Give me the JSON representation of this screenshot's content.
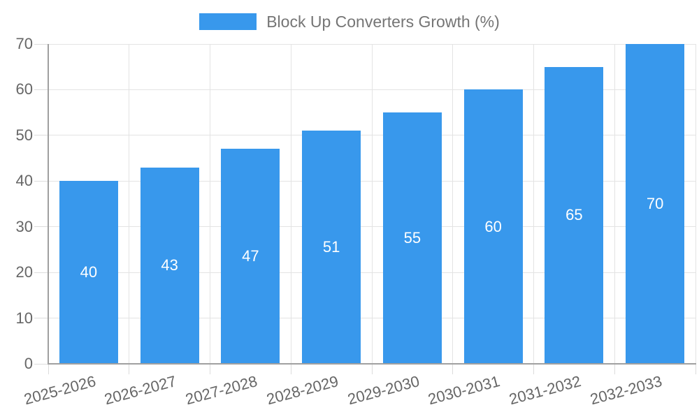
{
  "chart_data": {
    "type": "bar",
    "title": "Block Up Converters Growth (%)",
    "categories": [
      "2025-2026",
      "2026-2027",
      "2027-2028",
      "2028-2029",
      "2029-2030",
      "2030-2031",
      "2031-2032",
      "2032-2033"
    ],
    "series": [
      {
        "name": "Block Up Converters Growth (%)",
        "values": [
          40,
          43,
          47,
          51,
          55,
          60,
          65,
          70
        ]
      }
    ],
    "xlabel": "",
    "ylabel": "",
    "ylim": [
      0,
      70
    ],
    "y_ticks": [
      0,
      10,
      20,
      30,
      40,
      50,
      60,
      70
    ],
    "grid": true,
    "legend_position": "top-center",
    "bar_label_position": "inside-center",
    "x_label_rotation_deg": -15,
    "colors": {
      "bar": "#3898ec",
      "bar_label": "#ffffff",
      "axis_line": "#a0a0a0",
      "grid_line": "#e3e3e3",
      "tick_mark": "#dcdcdc",
      "tick_label": "#666666",
      "legend_text": "#757575",
      "background": "#ffffff"
    }
  }
}
